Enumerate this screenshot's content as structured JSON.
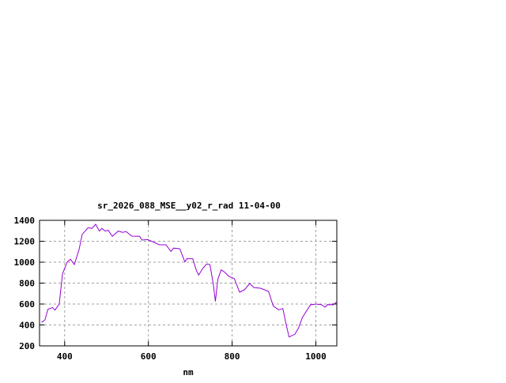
{
  "chart_data": {
    "type": "line",
    "title": "sr_2026_088_MSE__y02_r_rad 11-04-00",
    "xlabel": "nm",
    "ylabel": "",
    "xlim": [
      340,
      1050
    ],
    "ylim": [
      200,
      1400
    ],
    "xticks": [
      400,
      600,
      800,
      1000
    ],
    "yticks": [
      200,
      400,
      600,
      800,
      1000,
      1200,
      1400
    ],
    "grid": true,
    "line_color": "#9400d3",
    "series": [
      {
        "x": [
          345,
          353,
          360,
          371,
          377,
          387,
          395,
          406,
          414,
          423,
          434,
          442,
          456,
          465,
          474,
          483,
          489,
          497,
          504,
          514,
          528,
          538,
          547,
          560,
          579,
          585,
          598,
          610,
          626,
          642,
          654,
          660,
          675,
          687,
          692,
          706,
          714,
          720,
          730,
          739,
          747,
          755,
          760,
          766,
          774,
          783,
          792,
          805,
          818,
          830,
          842,
          852,
          868,
          887,
          898,
          911,
          921,
          930,
          936,
          950,
          959,
          968,
          987,
          1000,
          1013,
          1022,
          1028,
          1041,
          1049
        ],
        "y": [
          424,
          449,
          550,
          567,
          542,
          600,
          889,
          1002,
          1028,
          977,
          1115,
          1266,
          1330,
          1322,
          1362,
          1297,
          1322,
          1297,
          1305,
          1247,
          1297,
          1285,
          1292,
          1249,
          1247,
          1211,
          1216,
          1196,
          1166,
          1166,
          1103,
          1134,
          1128,
          1002,
          1033,
          1033,
          927,
          877,
          940,
          983,
          977,
          789,
          625,
          839,
          927,
          902,
          864,
          844,
          713,
          738,
          796,
          758,
          751,
          721,
          583,
          545,
          557,
          386,
          285,
          311,
          374,
          474,
          592,
          600,
          595,
          570,
          595,
          592,
          617
        ]
      }
    ]
  }
}
